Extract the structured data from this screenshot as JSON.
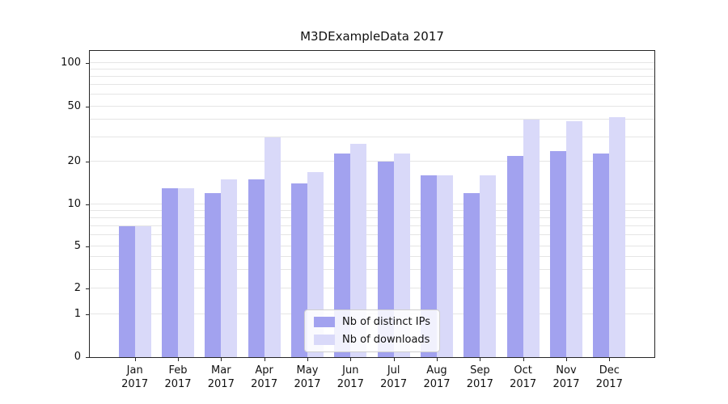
{
  "title": "M3DExampleData 2017",
  "chart_data": {
    "type": "bar",
    "title": "M3DExampleData 2017",
    "yscale": "symlog",
    "grid": true,
    "legend_position": "lower center",
    "categories": [
      "Jan",
      "Feb",
      "Mar",
      "Apr",
      "May",
      "Jun",
      "Jul",
      "Aug",
      "Sep",
      "Oct",
      "Nov",
      "Dec"
    ],
    "year": "2017",
    "yticks": [
      0,
      1,
      2,
      5,
      10,
      20,
      50,
      100
    ],
    "minor_gridlines": [
      3,
      4,
      6,
      7,
      8,
      9,
      30,
      40,
      60,
      70,
      80,
      90
    ],
    "ylim": [
      0,
      115
    ],
    "series": [
      {
        "name": "Nb of distinct IPs",
        "color": "#a2a2ef",
        "values": [
          7,
          13,
          12,
          15,
          14,
          23,
          20,
          16,
          12,
          22,
          24,
          23
        ]
      },
      {
        "name": "Nb of downloads",
        "color": "#d9d9f9",
        "values": [
          7,
          13,
          15,
          30,
          17,
          27,
          23,
          16,
          16,
          40,
          39,
          42
        ]
      }
    ]
  }
}
